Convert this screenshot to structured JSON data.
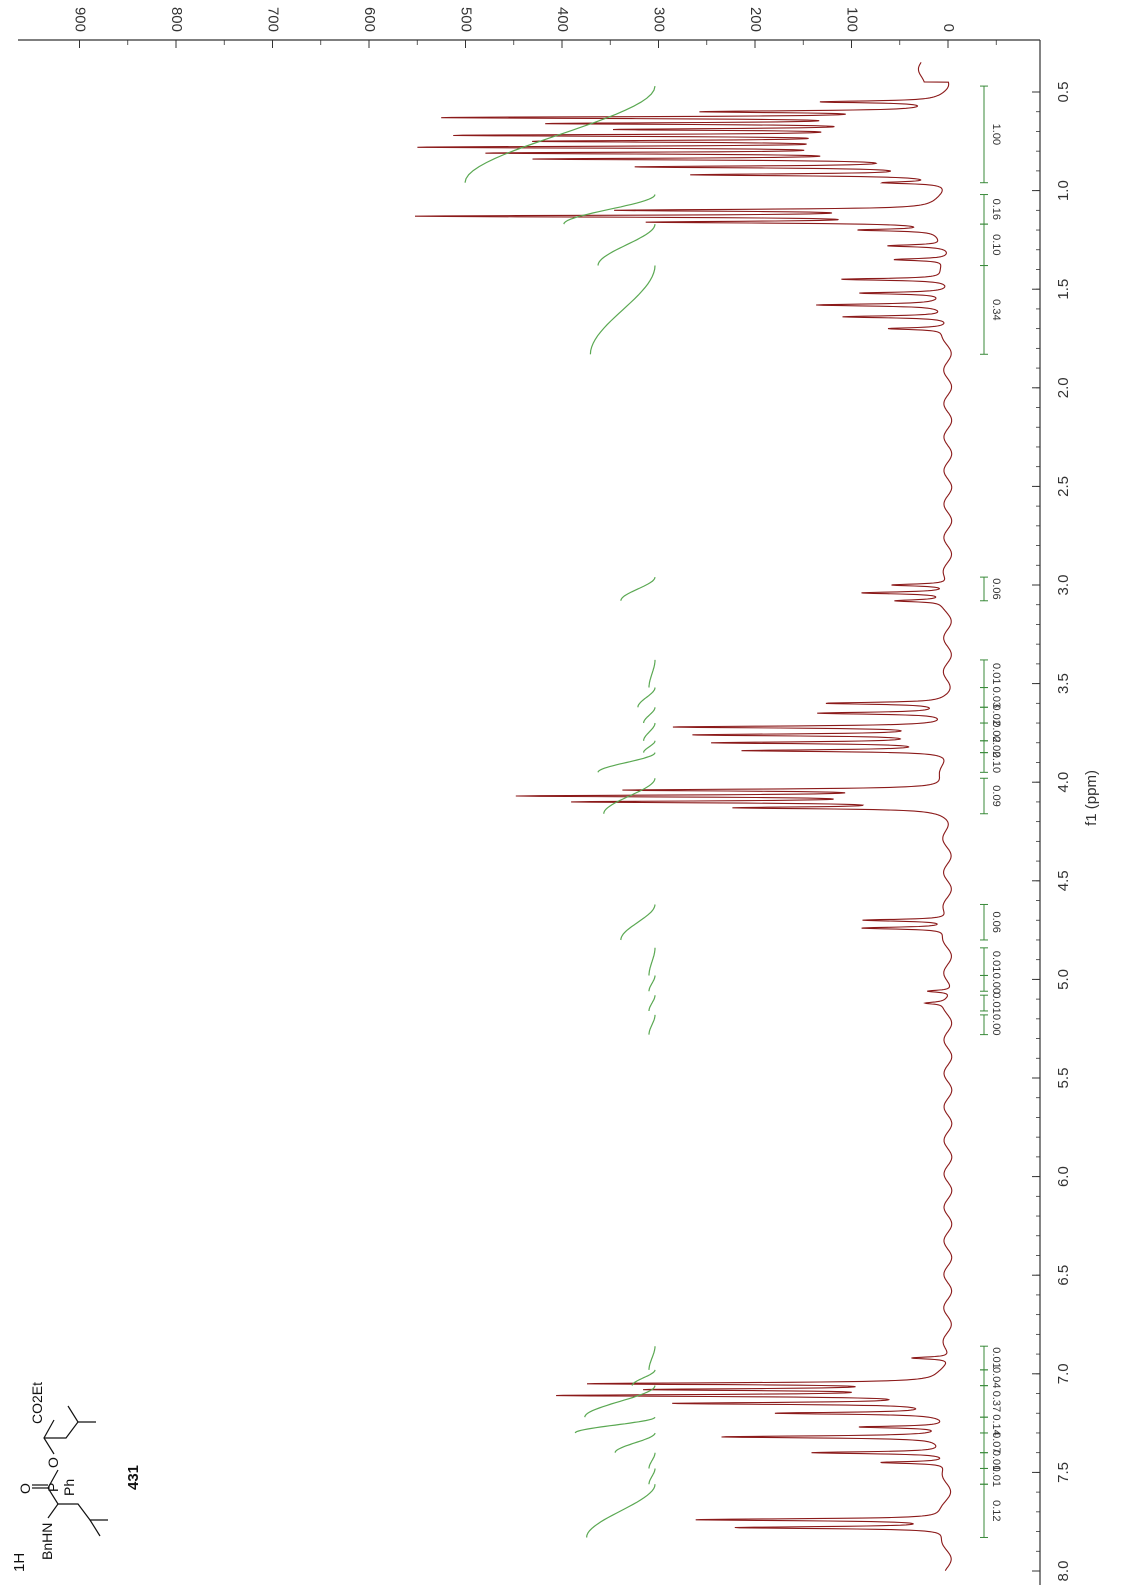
{
  "chart_data": {
    "type": "line",
    "title": "",
    "xlabel": "f1 (ppm)",
    "ylabel": "",
    "xlim": [
      0.3,
      8.0
    ],
    "ylim": [
      -50,
      940
    ],
    "x_ticks": [
      "0.5",
      "1.0",
      "1.5",
      "2.0",
      "2.5",
      "3.0",
      "3.5",
      "4.0",
      "4.5",
      "5.0",
      "5.5",
      "6.0",
      "6.5",
      "7.0",
      "7.5",
      "8.0"
    ],
    "y_ticks": [
      "0",
      "100",
      "200",
      "300",
      "400",
      "500",
      "600",
      "700",
      "800",
      "900"
    ],
    "grid": false,
    "series": [
      {
        "peaks": [
          {
            "ppm": 0.55,
            "height": 120
          },
          {
            "ppm": 0.6,
            "height": 230
          },
          {
            "ppm": 0.63,
            "height": 500
          },
          {
            "ppm": 0.66,
            "height": 380
          },
          {
            "ppm": 0.69,
            "height": 300
          },
          {
            "ppm": 0.72,
            "height": 470
          },
          {
            "ppm": 0.75,
            "height": 380
          },
          {
            "ppm": 0.78,
            "height": 510
          },
          {
            "ppm": 0.81,
            "height": 440
          },
          {
            "ppm": 0.84,
            "height": 400
          },
          {
            "ppm": 0.88,
            "height": 300
          },
          {
            "ppm": 0.92,
            "height": 250
          },
          {
            "ppm": 0.96,
            "height": 60
          },
          {
            "ppm": 1.1,
            "height": 320
          },
          {
            "ppm": 1.13,
            "height": 530
          },
          {
            "ppm": 1.16,
            "height": 290
          },
          {
            "ppm": 1.2,
            "height": 80
          },
          {
            "ppm": 1.28,
            "height": 60
          },
          {
            "ppm": 1.35,
            "height": 55
          },
          {
            "ppm": 1.45,
            "height": 110
          },
          {
            "ppm": 1.52,
            "height": 90
          },
          {
            "ppm": 1.58,
            "height": 130
          },
          {
            "ppm": 1.64,
            "height": 110
          },
          {
            "ppm": 1.7,
            "height": 60
          },
          {
            "ppm": 3.0,
            "height": 60
          },
          {
            "ppm": 3.04,
            "height": 90
          },
          {
            "ppm": 3.08,
            "height": 50
          },
          {
            "ppm": 3.6,
            "height": 120
          },
          {
            "ppm": 3.65,
            "height": 130
          },
          {
            "ppm": 3.72,
            "height": 280
          },
          {
            "ppm": 3.76,
            "height": 250
          },
          {
            "ppm": 3.8,
            "height": 230
          },
          {
            "ppm": 3.84,
            "height": 210
          },
          {
            "ppm": 4.04,
            "height": 320
          },
          {
            "ppm": 4.07,
            "height": 420
          },
          {
            "ppm": 4.1,
            "height": 360
          },
          {
            "ppm": 4.13,
            "height": 200
          },
          {
            "ppm": 4.7,
            "height": 90
          },
          {
            "ppm": 4.74,
            "height": 90
          },
          {
            "ppm": 5.06,
            "height": 25
          },
          {
            "ppm": 5.12,
            "height": 20
          },
          {
            "ppm": 6.92,
            "height": 40
          },
          {
            "ppm": 7.05,
            "height": 360
          },
          {
            "ppm": 7.08,
            "height": 290
          },
          {
            "ppm": 7.11,
            "height": 390
          },
          {
            "ppm": 7.15,
            "height": 270
          },
          {
            "ppm": 7.2,
            "height": 170
          },
          {
            "ppm": 7.27,
            "height": 90
          },
          {
            "ppm": 7.32,
            "height": 230
          },
          {
            "ppm": 7.4,
            "height": 140
          },
          {
            "ppm": 7.45,
            "height": 70
          },
          {
            "ppm": 7.74,
            "height": 260
          },
          {
            "ppm": 7.78,
            "height": 220
          }
        ]
      }
    ],
    "integrals": [
      {
        "label": "1.00",
        "from": 0.47,
        "to": 0.96
      },
      {
        "label": "0.16",
        "from": 1.02,
        "to": 1.17
      },
      {
        "label": "0.10",
        "from": 1.17,
        "to": 1.38
      },
      {
        "label": "0.34",
        "from": 1.38,
        "to": 1.83
      },
      {
        "label": "0.06",
        "from": 2.96,
        "to": 3.08
      },
      {
        "label": "0.01",
        "from": 3.38,
        "to": 3.52
      },
      {
        "label": "0.03",
        "from": 3.52,
        "to": 3.62
      },
      {
        "label": "0.02",
        "from": 3.62,
        "to": 3.7
      },
      {
        "label": "0.02",
        "from": 3.7,
        "to": 3.79
      },
      {
        "label": "0.02",
        "from": 3.79,
        "to": 3.85
      },
      {
        "label": "0.10",
        "from": 3.85,
        "to": 3.95
      },
      {
        "label": "0.09",
        "from": 3.98,
        "to": 4.16
      },
      {
        "label": "0.06",
        "from": 4.62,
        "to": 4.8
      },
      {
        "label": "0.01",
        "from": 4.84,
        "to": 4.98
      },
      {
        "label": "0.00",
        "from": 4.98,
        "to": 5.06
      },
      {
        "label": "0.01",
        "from": 5.08,
        "to": 5.16
      },
      {
        "label": "0.00",
        "from": 5.18,
        "to": 5.28
      },
      {
        "label": "0.01",
        "from": 6.86,
        "to": 6.98
      },
      {
        "label": "0.04",
        "from": 6.98,
        "to": 7.06
      },
      {
        "label": "0.37",
        "from": 7.06,
        "to": 7.22
      },
      {
        "label": "0.14",
        "from": 7.22,
        "to": 7.3
      },
      {
        "label": "0.07",
        "from": 7.3,
        "to": 7.4
      },
      {
        "label": "0.01",
        "from": 7.4,
        "to": 7.48
      },
      {
        "label": "0.01",
        "from": 7.48,
        "to": 7.56
      },
      {
        "label": "0.12",
        "from": 7.56,
        "to": 7.83
      }
    ]
  },
  "structure": {
    "labels": {
      "nucleus": "1H",
      "bnhn": "BnHN",
      "o_double": "O",
      "p": "P",
      "o_link": "O",
      "ph": "Ph",
      "co2et": "CO2Et",
      "compound": "431"
    }
  }
}
